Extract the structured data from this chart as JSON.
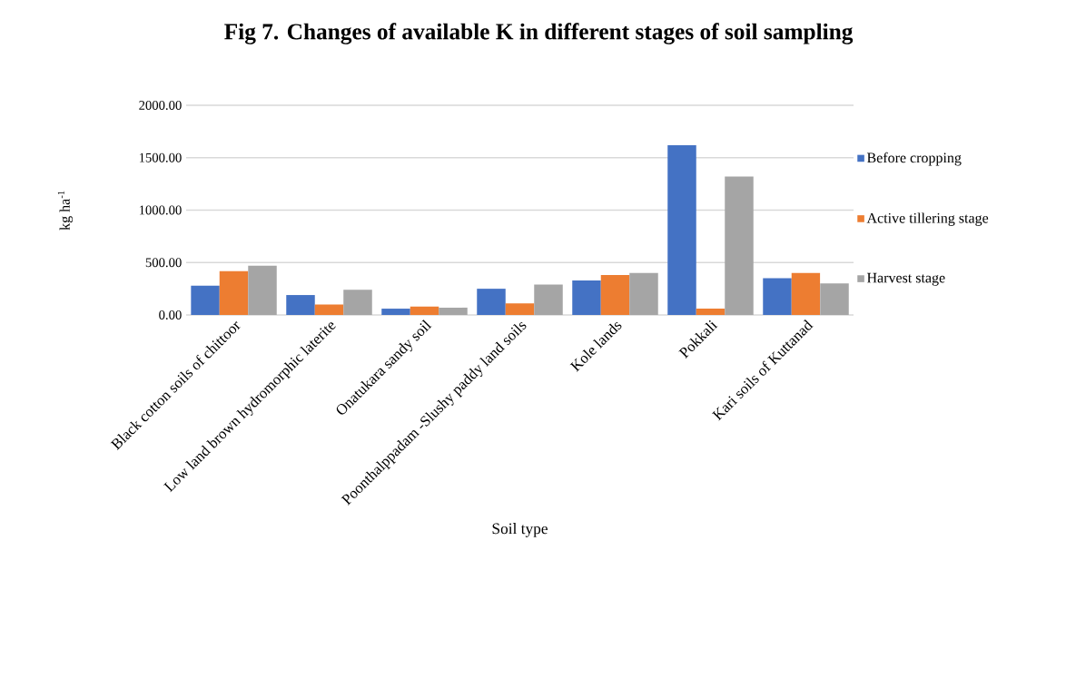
{
  "chart_data": {
    "type": "bar",
    "title": "**Fig 7. Changes of available K in different stages of soil sampling**",
    "xlabel": "Soil type",
    "ylabel": "kg ha$^{-1}$",
    "categories": [
      "Black cotton soils of chittoor",
      "Low land brown hydromorphic laterite",
      "Onatukara sandy soil",
      "Poonthalppadam -Slushy paddy land soils",
      "Kole lands",
      "Pokkali",
      "Kari soils of Kuttanad"
    ],
    "series": [
      {
        "name": "Before cropping",
        "color": "#4472c4",
        "values": [
          280,
          190,
          60,
          250,
          330,
          1620,
          350
        ]
      },
      {
        "name": "Active tillering stage",
        "color": "#ed7d31",
        "values": [
          420,
          100,
          80,
          110,
          380,
          60,
          400
        ]
      },
      {
        "name": "Harvest stage",
        "color": "#a5a5a5",
        "values": [
          470,
          240,
          70,
          290,
          400,
          1320,
          300
        ]
      }
    ],
    "ylim": [
      0,
      2000
    ],
    "yticks": [
      {
        "value": 0,
        "label": "0.00"
      },
      {
        "value": 500,
        "label": "500.00"
      },
      {
        "value": 1000,
        "label": "1000.00"
      },
      {
        "value": 1500,
        "label": "1500.00"
      },
      {
        "value": 2000,
        "label": "2000.00"
      }
    ],
    "grid": "y",
    "legend": "right"
  }
}
